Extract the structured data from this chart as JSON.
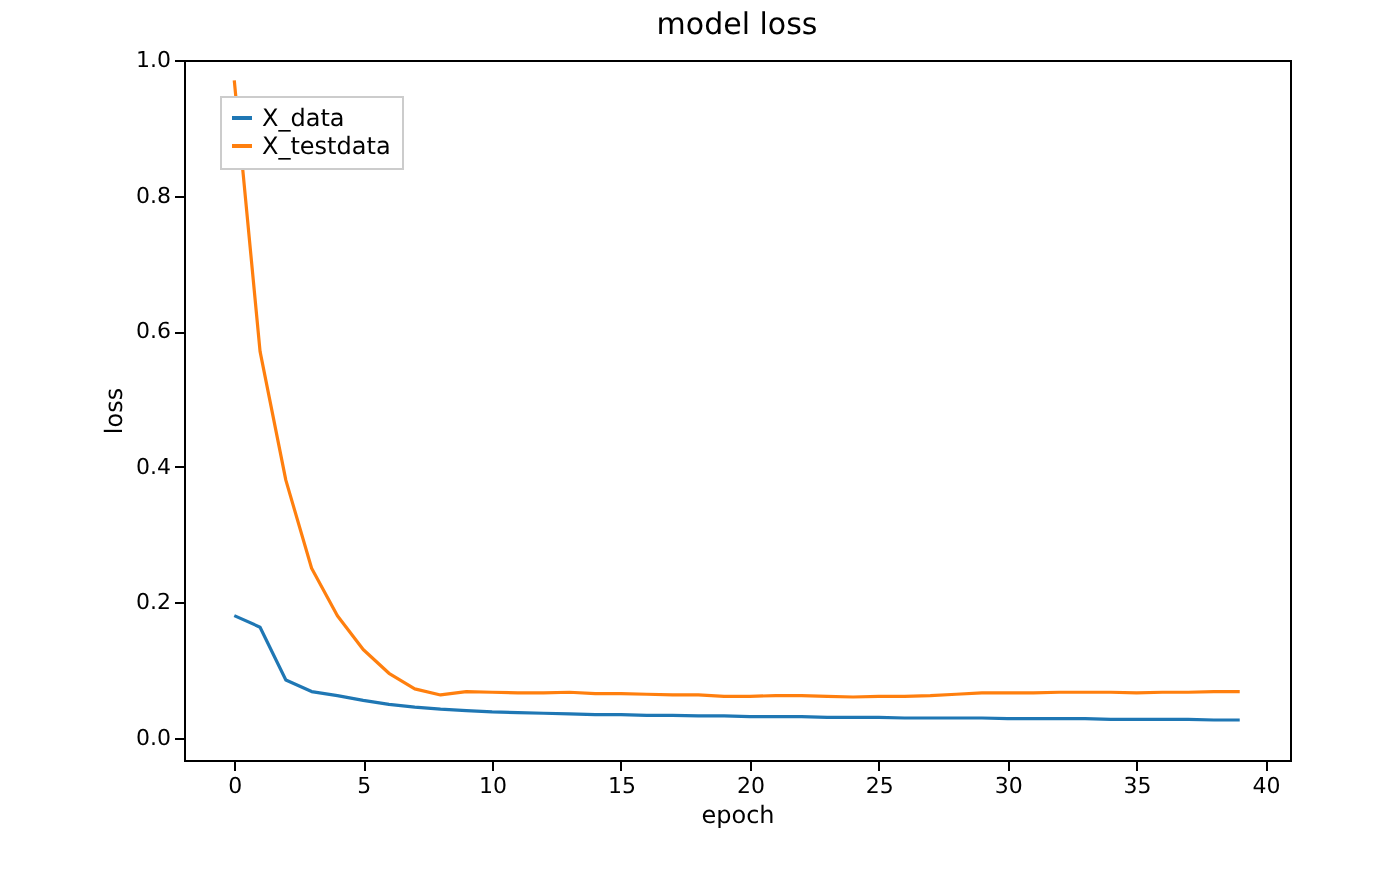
{
  "chart_data": {
    "type": "line",
    "title": "model loss",
    "xlabel": "epoch",
    "ylabel": "loss",
    "x": [
      0,
      1,
      2,
      3,
      4,
      5,
      6,
      7,
      8,
      9,
      10,
      11,
      12,
      13,
      14,
      15,
      16,
      17,
      18,
      19,
      20,
      21,
      22,
      23,
      24,
      25,
      26,
      27,
      28,
      29,
      30,
      31,
      32,
      33,
      34,
      35,
      36,
      37,
      38,
      39
    ],
    "series": [
      {
        "name": "X_data",
        "color": "#1f77b4",
        "values": [
          0.18,
          0.163,
          0.085,
          0.068,
          0.062,
          0.055,
          0.049,
          0.045,
          0.042,
          0.04,
          0.038,
          0.037,
          0.036,
          0.035,
          0.034,
          0.034,
          0.033,
          0.033,
          0.032,
          0.032,
          0.031,
          0.031,
          0.031,
          0.03,
          0.03,
          0.03,
          0.029,
          0.029,
          0.029,
          0.029,
          0.028,
          0.028,
          0.028,
          0.028,
          0.027,
          0.027,
          0.027,
          0.027,
          0.026,
          0.026
        ]
      },
      {
        "name": "X_testdata",
        "color": "#ff7f0e",
        "values": [
          0.97,
          0.57,
          0.38,
          0.25,
          0.18,
          0.13,
          0.095,
          0.072,
          0.063,
          0.068,
          0.067,
          0.066,
          0.066,
          0.067,
          0.065,
          0.065,
          0.064,
          0.063,
          0.063,
          0.061,
          0.061,
          0.062,
          0.062,
          0.061,
          0.06,
          0.061,
          0.061,
          0.062,
          0.064,
          0.066,
          0.066,
          0.066,
          0.067,
          0.067,
          0.067,
          0.066,
          0.067,
          0.067,
          0.068,
          0.068
        ]
      }
    ],
    "xlim": [
      -1.95,
      40.95
    ],
    "xticks": [
      0,
      5,
      10,
      15,
      20,
      25,
      30,
      35,
      40
    ],
    "ylim": [
      -0.033,
      1.0
    ],
    "yticks": [
      {
        "value": 0,
        "label": "0.0"
      },
      {
        "value": 0.2,
        "label": "0.2"
      },
      {
        "value": 0.4,
        "label": "0.4"
      },
      {
        "value": 0.6,
        "label": "0.6"
      },
      {
        "value": 0.8,
        "label": "0.8"
      },
      {
        "value": 1.0,
        "label": "1.0"
      }
    ],
    "grid": false,
    "legend": "top left",
    "marker": "none",
    "line_style": "solid"
  }
}
